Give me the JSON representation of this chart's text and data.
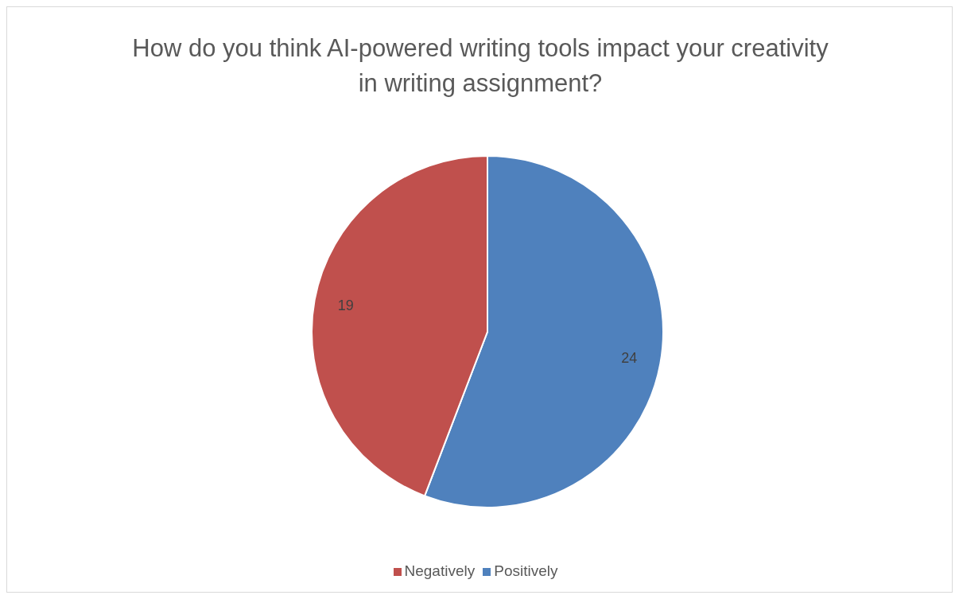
{
  "chart_data": {
    "type": "pie",
    "title": "How do you think AI-powered writing tools impact your creativity in writing assignment?",
    "categories": [
      "Positively",
      "Negatively"
    ],
    "values": [
      24,
      19
    ],
    "colors": [
      "#4f81bd",
      "#c0504d"
    ],
    "data_labels": true,
    "legend": "bottom"
  }
}
